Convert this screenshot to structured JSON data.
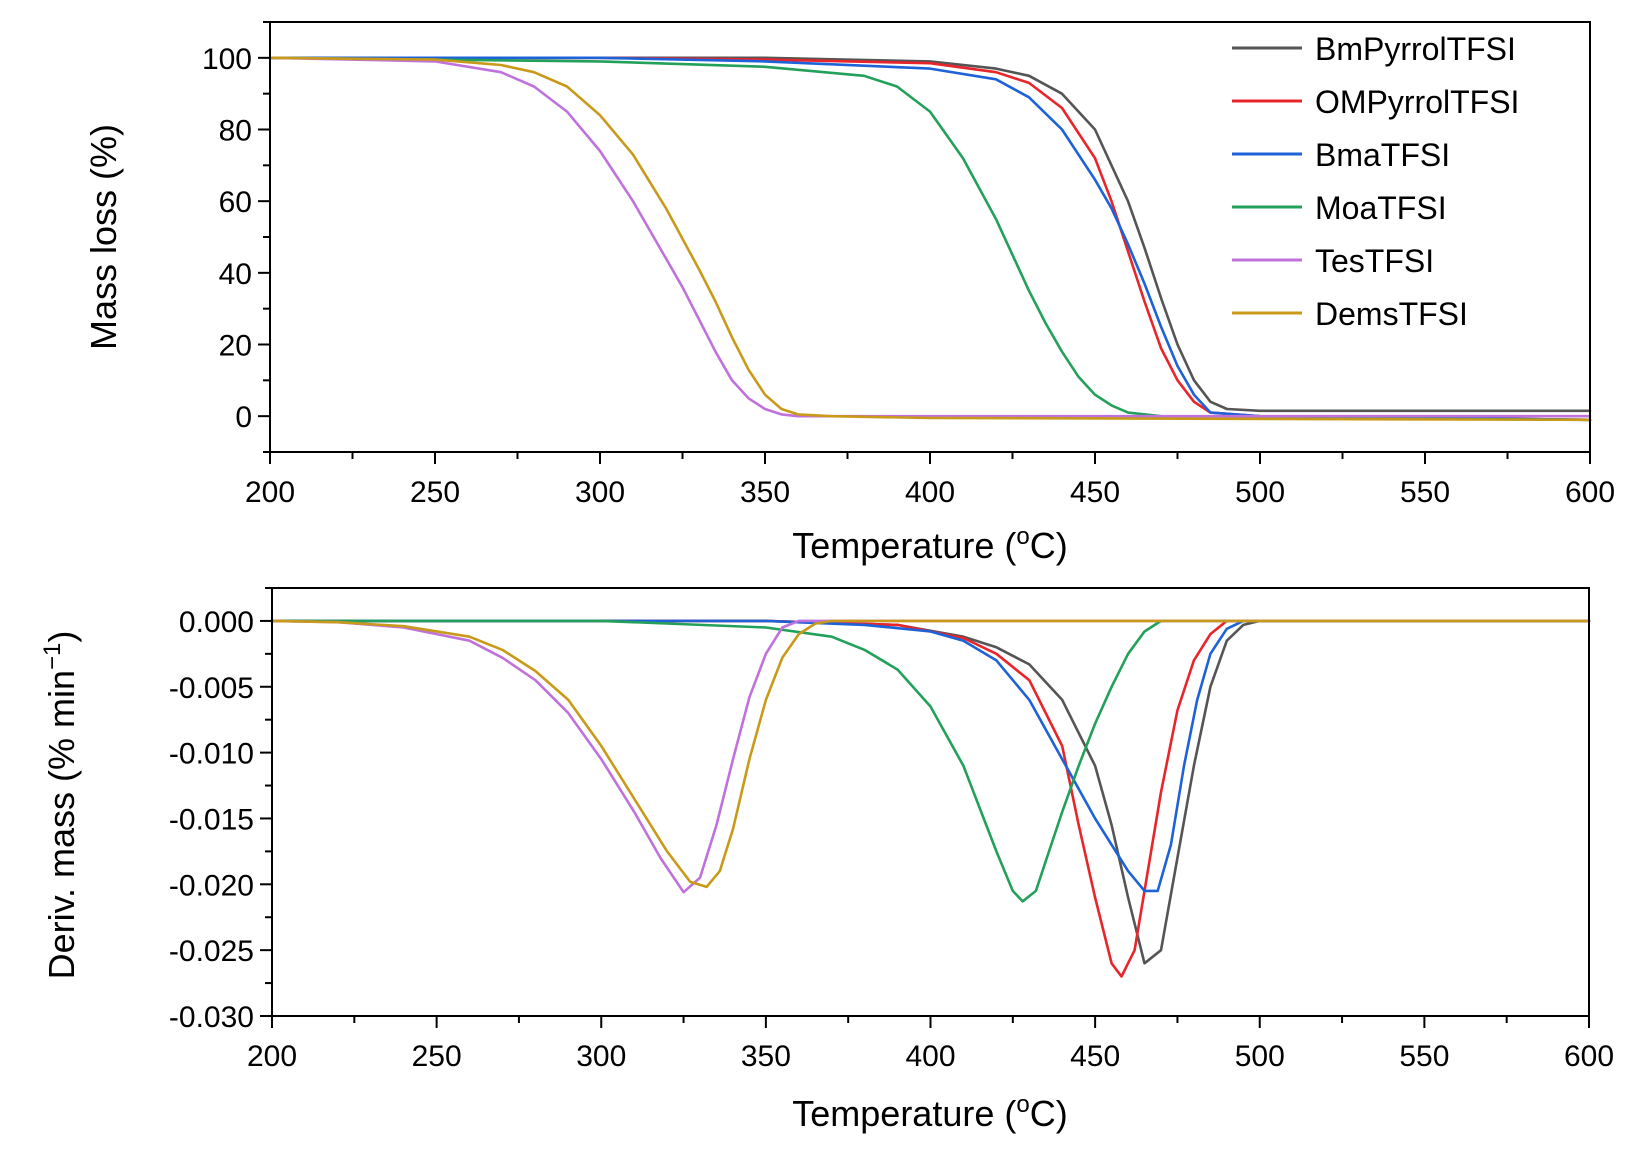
{
  "chart_data": [
    {
      "type": "line",
      "xlabel": "Temperature (°C)",
      "xlabel_main": "Temperature (",
      "xlabel_sup": "o",
      "xlabel_end": "C)",
      "ylabel": "Mass loss (%)",
      "xlim": [
        200,
        600
      ],
      "ylim": [
        -10,
        110
      ],
      "x_ticks": [
        200,
        250,
        300,
        350,
        400,
        450,
        500,
        550,
        600
      ],
      "x_tick_labels": [
        "200",
        "250",
        "300",
        "350",
        "400",
        "450",
        "500",
        "550",
        "600"
      ],
      "y_ticks": [
        0,
        20,
        40,
        60,
        80,
        100
      ],
      "y_tick_labels": [
        "0",
        "20",
        "40",
        "60",
        "80",
        "100"
      ],
      "legend_position": "top-right",
      "series": [
        {
          "name": "BmPyrrolTFSI",
          "color": "#555555",
          "x": [
            200,
            250,
            300,
            350,
            400,
            420,
            430,
            440,
            450,
            460,
            465,
            470,
            475,
            480,
            485,
            490,
            500,
            550,
            600
          ],
          "y": [
            100,
            100,
            100,
            100,
            99,
            97,
            95,
            90,
            80,
            60,
            47,
            33,
            20,
            10,
            4,
            2,
            1.5,
            1.5,
            1.5
          ]
        },
        {
          "name": "OMPyrrolTFSI",
          "color": "#e8252b",
          "x": [
            200,
            250,
            300,
            350,
            400,
            420,
            430,
            440,
            450,
            455,
            460,
            465,
            470,
            475,
            480,
            485,
            500,
            550,
            600
          ],
          "y": [
            100,
            100,
            100,
            99.5,
            98.5,
            96,
            93,
            86,
            72,
            60,
            46,
            32,
            19,
            10,
            4,
            1,
            0,
            -0.5,
            -1
          ]
        },
        {
          "name": "BmaTFSI",
          "color": "#1e62d8",
          "x": [
            200,
            250,
            300,
            350,
            400,
            420,
            430,
            440,
            450,
            455,
            460,
            465,
            470,
            475,
            480,
            485,
            500,
            550,
            600
          ],
          "y": [
            100,
            100,
            100,
            99,
            97,
            94,
            89,
            80,
            66,
            58,
            48,
            37,
            25,
            14,
            6,
            1,
            0,
            -0.5,
            -1
          ]
        },
        {
          "name": "MoaTFSI",
          "color": "#23a05a",
          "x": [
            200,
            300,
            350,
            380,
            390,
            400,
            410,
            420,
            425,
            430,
            435,
            440,
            445,
            450,
            455,
            460,
            470,
            500,
            600
          ],
          "y": [
            100,
            99,
            97.5,
            95,
            92,
            85,
            72,
            55,
            45,
            35,
            26,
            18,
            11,
            6,
            3,
            1,
            0,
            -0.5,
            -1
          ]
        },
        {
          "name": "TesTFSI",
          "color": "#bf72dc",
          "x": [
            200,
            250,
            270,
            280,
            290,
            300,
            310,
            320,
            325,
            330,
            335,
            340,
            345,
            350,
            355,
            360,
            400,
            600
          ],
          "y": [
            100,
            99,
            96,
            92,
            85,
            74,
            60,
            44,
            36,
            27,
            18,
            10,
            5,
            2,
            0.5,
            0,
            0,
            0
          ]
        },
        {
          "name": "DemsTFSI",
          "color": "#c99a1a",
          "x": [
            200,
            250,
            270,
            280,
            290,
            300,
            310,
            320,
            330,
            335,
            340,
            345,
            350,
            355,
            360,
            370,
            400,
            600
          ],
          "y": [
            100,
            99.5,
            98,
            96,
            92,
            84,
            73,
            58,
            41,
            32,
            22,
            13,
            6,
            2,
            0.5,
            0,
            -0.5,
            -1
          ]
        }
      ],
      "legend": [
        "BmPyrrolTFSI",
        "OMPyrrolTFSI",
        "BmaTFSI",
        "MoaTFSI",
        "TesTFSI",
        "DemsTFSI"
      ]
    },
    {
      "type": "line",
      "xlabel": "Temperature (°C)",
      "xlabel_main": "Temperature (",
      "xlabel_sup": "o",
      "xlabel_end": "C)",
      "ylabel": "Deriv. mass (% min⁻¹)",
      "ylabel_main": "Deriv. mass (% min",
      "ylabel_sup": "−1",
      "ylabel_end": ")",
      "xlim": [
        200,
        600
      ],
      "ylim": [
        -0.03,
        0.0025
      ],
      "x_ticks": [
        200,
        250,
        300,
        350,
        400,
        450,
        500,
        550,
        600
      ],
      "x_tick_labels": [
        "200",
        "250",
        "300",
        "350",
        "400",
        "450",
        "500",
        "550",
        "600"
      ],
      "y_ticks": [
        0.0,
        -0.005,
        -0.01,
        -0.015,
        -0.02,
        -0.025,
        -0.03
      ],
      "y_tick_labels": [
        "0.000",
        "-0.005",
        "-0.010",
        "-0.015",
        "-0.020",
        "-0.025",
        "-0.030"
      ],
      "series": [
        {
          "name": "BmPyrrolTFSI",
          "color": "#555555",
          "x": [
            200,
            350,
            390,
            410,
            420,
            430,
            440,
            450,
            455,
            460,
            465,
            470,
            475,
            480,
            485,
            490,
            495,
            500,
            505,
            600
          ],
          "y": [
            0,
            0,
            -0.0003,
            -0.0012,
            -0.002,
            -0.0033,
            -0.006,
            -0.011,
            -0.0155,
            -0.021,
            -0.026,
            -0.025,
            -0.018,
            -0.011,
            -0.005,
            -0.0015,
            -0.0003,
            0,
            0,
            0
          ]
        },
        {
          "name": "OMPyrrolTFSI",
          "color": "#e8252b",
          "x": [
            200,
            350,
            390,
            410,
            420,
            430,
            440,
            445,
            450,
            455,
            458,
            462,
            466,
            470,
            475,
            480,
            485,
            490,
            500,
            600
          ],
          "y": [
            0,
            0,
            -0.0003,
            -0.0013,
            -0.0025,
            -0.0045,
            -0.0095,
            -0.0155,
            -0.021,
            -0.026,
            -0.027,
            -0.025,
            -0.019,
            -0.013,
            -0.0068,
            -0.003,
            -0.001,
            0,
            0,
            0
          ]
        },
        {
          "name": "BmaTFSI",
          "color": "#1e62d8",
          "x": [
            200,
            350,
            380,
            400,
            410,
            420,
            430,
            440,
            450,
            460,
            465,
            469,
            473,
            477,
            481,
            485,
            490,
            495,
            500,
            600
          ],
          "y": [
            0,
            0,
            -0.0003,
            -0.0008,
            -0.0015,
            -0.003,
            -0.006,
            -0.0105,
            -0.015,
            -0.019,
            -0.0205,
            -0.0205,
            -0.017,
            -0.011,
            -0.006,
            -0.0025,
            -0.0006,
            0,
            0,
            0
          ]
        },
        {
          "name": "MoaTFSI",
          "color": "#23a05a",
          "x": [
            200,
            300,
            350,
            370,
            380,
            390,
            400,
            410,
            420,
            425,
            428,
            432,
            436,
            440,
            445,
            450,
            455,
            460,
            465,
            470,
            600
          ],
          "y": [
            0,
            0,
            -0.0005,
            -0.0012,
            -0.0022,
            -0.0037,
            -0.0065,
            -0.011,
            -0.0175,
            -0.0205,
            -0.0213,
            -0.0205,
            -0.0175,
            -0.0145,
            -0.011,
            -0.0078,
            -0.005,
            -0.0025,
            -0.0008,
            0,
            0
          ]
        },
        {
          "name": "TesTFSI",
          "color": "#bf72dc",
          "x": [
            200,
            220,
            240,
            260,
            270,
            280,
            290,
            300,
            310,
            318,
            325,
            330,
            335,
            340,
            345,
            350,
            355,
            360,
            600
          ],
          "y": [
            0,
            -0.0001,
            -0.0005,
            -0.0015,
            -0.0028,
            -0.0045,
            -0.007,
            -0.0105,
            -0.0145,
            -0.018,
            -0.0206,
            -0.0195,
            -0.0155,
            -0.0105,
            -0.0058,
            -0.0025,
            -0.0005,
            0,
            0
          ]
        },
        {
          "name": "DemsTFSI",
          "color": "#c99a1a",
          "x": [
            200,
            220,
            240,
            260,
            270,
            280,
            290,
            300,
            310,
            320,
            327,
            332,
            336,
            340,
            345,
            350,
            355,
            360,
            365,
            370,
            600
          ],
          "y": [
            0,
            -0.0001,
            -0.0004,
            -0.0012,
            -0.0022,
            -0.0038,
            -0.006,
            -0.0095,
            -0.0135,
            -0.0175,
            -0.0198,
            -0.0202,
            -0.019,
            -0.0158,
            -0.0105,
            -0.006,
            -0.0028,
            -0.001,
            -0.0002,
            0,
            0
          ]
        }
      ]
    }
  ]
}
